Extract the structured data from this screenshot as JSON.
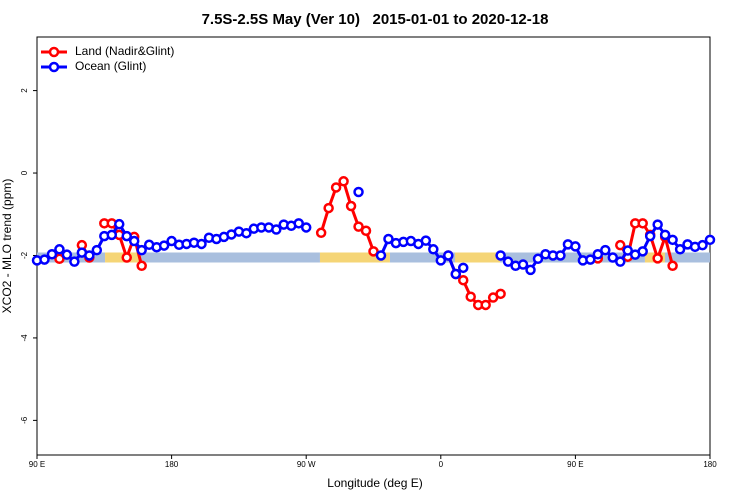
{
  "chart_data": {
    "type": "line",
    "title": "7.5S-2.5S May (Ver 10)   2015-01-01 to 2020-12-18",
    "x_label": "Longitude (deg E)",
    "y_label": "XCO2 - MLO trend (ppm)",
    "xlim": [
      90,
      540
    ],
    "ylim": [
      -6.84,
      3.3
    ],
    "xticks": [
      {
        "value": 90,
        "label": "90 E"
      },
      180,
      {
        "value": 270,
        "label": "90 W"
      },
      {
        "value": 360,
        "label": "0"
      },
      {
        "value": 450,
        "label": "90 E"
      },
      {
        "value": 540,
        "label": "180"
      }
    ],
    "yticks": [
      2,
      0,
      -2,
      -4,
      -6
    ],
    "grid": false,
    "legend": "top-left",
    "band": {
      "y": -2.05,
      "segments": [
        {
          "x": [
            90,
            135.5
          ],
          "color": "#a9bfde"
        },
        {
          "x": [
            135.5,
            158.9
          ],
          "color": "#f5d576"
        },
        {
          "x": [
            158.9,
            279.2
          ],
          "color": "#a9bfde"
        },
        {
          "x": [
            279.2,
            326
          ],
          "color": "#f5d576"
        },
        {
          "x": [
            326,
            369.5
          ],
          "color": "#a9bfde"
        },
        {
          "x": [
            369.5,
            399.6
          ],
          "color": "#f5d576"
        },
        {
          "x": [
            399.6,
            496.5
          ],
          "color": "#a9bfde"
        },
        {
          "x": [
            496.5,
            509.9
          ],
          "color": "#f5d576"
        },
        {
          "x": [
            509.9,
            540
          ],
          "color": "#a9bfde"
        }
      ]
    },
    "x": [
      90,
      95,
      100,
      105,
      110,
      115,
      120,
      125,
      130,
      135,
      140,
      145,
      150,
      155,
      160,
      165,
      170,
      175,
      180,
      185,
      190,
      195,
      200,
      205,
      210,
      215,
      220,
      225,
      230,
      235,
      240,
      245,
      250,
      255,
      260,
      265,
      270,
      275,
      280,
      285,
      290,
      295,
      300,
      305,
      310,
      315,
      320,
      325,
      330,
      335,
      340,
      345,
      350,
      355,
      360,
      365,
      370,
      375,
      380,
      385,
      390,
      395,
      400,
      405,
      410,
      415,
      420,
      425,
      430,
      435,
      440,
      445,
      450,
      455,
      460,
      465,
      470,
      475,
      480,
      485,
      490,
      495,
      500,
      505,
      510,
      515,
      520,
      525,
      530,
      535,
      540
    ],
    "series": [
      {
        "name": "Land (Nadir&Glint)",
        "color": "#ff0000",
        "values": [
          null,
          null,
          null,
          -2.08,
          null,
          null,
          -1.75,
          -2.05,
          null,
          -1.22,
          -1.22,
          -1.5,
          -2.05,
          -1.55,
          -2.25,
          null,
          null,
          null,
          null,
          null,
          null,
          null,
          null,
          null,
          null,
          null,
          null,
          null,
          null,
          null,
          null,
          null,
          null,
          null,
          null,
          null,
          null,
          null,
          -1.45,
          -0.85,
          -0.35,
          -0.2,
          -0.8,
          -1.3,
          -1.4,
          -1.9,
          null,
          null,
          null,
          null,
          null,
          null,
          null,
          null,
          null,
          -2.0,
          -2.45,
          -2.6,
          -3.0,
          -3.2,
          -3.2,
          -3.02,
          -2.93,
          null,
          null,
          null,
          null,
          null,
          null,
          null,
          null,
          null,
          null,
          null,
          null,
          -2.07,
          null,
          null,
          -1.75,
          -2.03,
          -1.22,
          -1.22,
          -1.5,
          -2.07,
          -1.55,
          -2.25,
          null,
          null,
          null,
          null,
          null
        ]
      },
      {
        "name": "Ocean (Glint)",
        "color": "#0000ff",
        "values": [
          -2.12,
          -2.1,
          -1.97,
          -1.85,
          -1.98,
          -2.15,
          -1.93,
          -2.0,
          -1.87,
          -1.53,
          -1.5,
          -1.24,
          -1.53,
          -1.65,
          -1.87,
          -1.74,
          -1.8,
          -1.76,
          -1.65,
          -1.74,
          -1.72,
          -1.69,
          -1.72,
          -1.57,
          -1.6,
          -1.55,
          -1.49,
          -1.42,
          -1.46,
          -1.35,
          -1.32,
          -1.32,
          -1.37,
          -1.25,
          -1.28,
          -1.22,
          -1.32,
          null,
          null,
          null,
          null,
          null,
          null,
          -0.46,
          null,
          null,
          -2.0,
          -1.6,
          -1.7,
          -1.67,
          -1.65,
          -1.72,
          -1.64,
          -1.85,
          -2.12,
          -2.0,
          -2.45,
          -2.3,
          null,
          null,
          null,
          null,
          -2.0,
          -2.15,
          -2.25,
          -2.22,
          -2.35,
          -2.08,
          -1.97,
          -2.0,
          -2.0,
          -1.73,
          -1.78,
          -2.12,
          -2.1,
          -1.97,
          -1.87,
          -2.05,
          -2.15,
          -1.88,
          -1.98,
          -1.9,
          -1.53,
          -1.25,
          -1.5,
          -1.62,
          -1.85,
          -1.73,
          -1.79,
          -1.75,
          -1.62
        ]
      }
    ]
  }
}
